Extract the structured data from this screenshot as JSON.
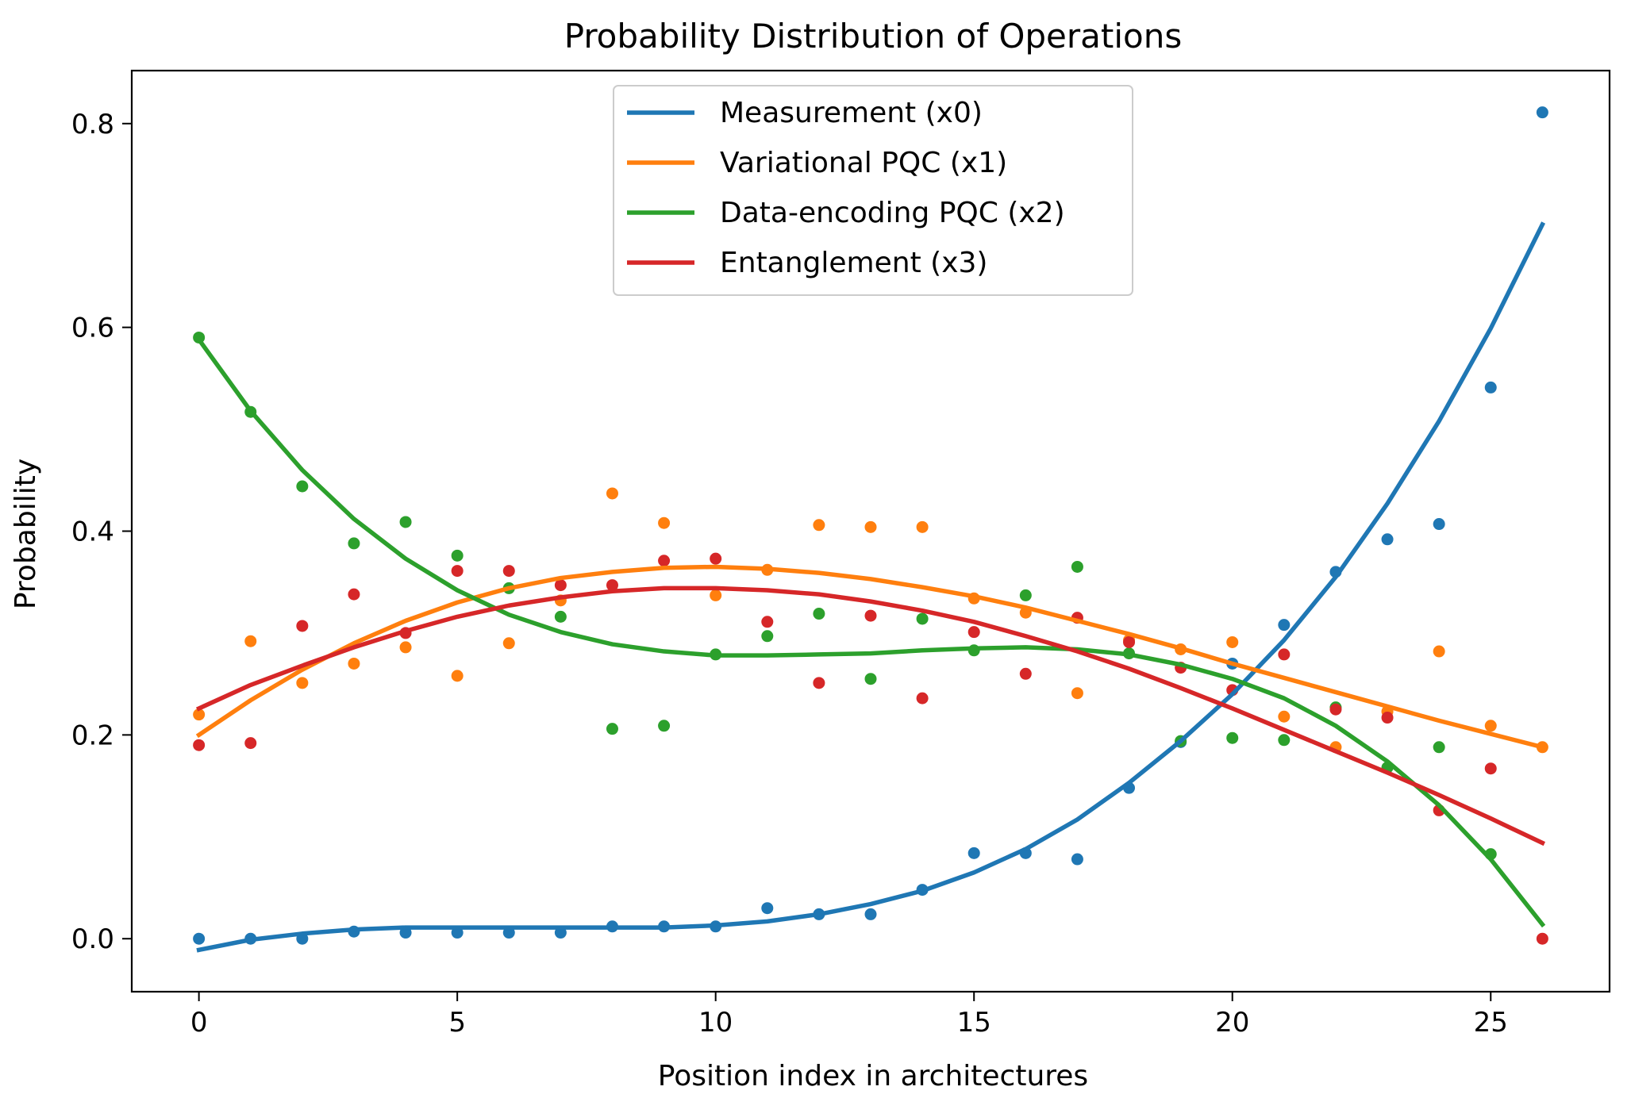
{
  "chart_data": {
    "type": "scatter",
    "title": "Probability Distribution of Operations",
    "xlabel": "Position index in architectures",
    "ylabel": "Probability",
    "xlim": [
      -1.3,
      27.3
    ],
    "ylim": [
      -0.052,
      0.852
    ],
    "xticks": [
      0,
      5,
      10,
      15,
      20,
      25
    ],
    "yticks": [
      0.0,
      0.2,
      0.4,
      0.6,
      0.8
    ],
    "xtick_labels": [
      "0",
      "5",
      "10",
      "15",
      "20",
      "25"
    ],
    "ytick_labels": [
      "0.0",
      "0.2",
      "0.4",
      "0.6",
      "0.8"
    ],
    "legend_position": "upper-center",
    "grid": false,
    "x": [
      0,
      1,
      2,
      3,
      4,
      5,
      6,
      7,
      8,
      9,
      10,
      11,
      12,
      13,
      14,
      15,
      16,
      17,
      18,
      19,
      20,
      21,
      22,
      23,
      24,
      25,
      26
    ],
    "series": [
      {
        "name": "Measurement (x0)",
        "color": "#1f77b4",
        "points": [
          0.0,
          0.0,
          0.0,
          0.007,
          0.006,
          0.006,
          0.006,
          0.006,
          0.012,
          0.012,
          0.012,
          0.03,
          0.024,
          0.024,
          0.048,
          0.084,
          0.084,
          0.078,
          0.148,
          0.193,
          0.27,
          0.308,
          0.36,
          0.392,
          0.407,
          0.541,
          0.811
        ],
        "fit": [
          -0.011,
          -0.001,
          0.005,
          0.009,
          0.011,
          0.011,
          0.011,
          0.011,
          0.011,
          0.011,
          0.013,
          0.017,
          0.024,
          0.034,
          0.047,
          0.065,
          0.088,
          0.117,
          0.153,
          0.194,
          0.24,
          0.293,
          0.355,
          0.427,
          0.508,
          0.599,
          0.701
        ]
      },
      {
        "name": "Variational PQC (x1)",
        "color": "#ff7f0e",
        "points": [
          0.22,
          0.292,
          0.251,
          0.27,
          0.286,
          0.258,
          0.29,
          0.332,
          0.437,
          0.408,
          0.337,
          0.362,
          0.406,
          0.404,
          0.404,
          0.334,
          0.32,
          0.241,
          0.293,
          0.284,
          0.291,
          0.218,
          0.188,
          0.223,
          0.282,
          0.209,
          0.188
        ],
        "fit": [
          0.2,
          0.234,
          0.264,
          0.29,
          0.312,
          0.33,
          0.344,
          0.354,
          0.36,
          0.364,
          0.365,
          0.363,
          0.359,
          0.353,
          0.345,
          0.336,
          0.325,
          0.312,
          0.299,
          0.285,
          0.27,
          0.256,
          0.242,
          0.228,
          0.214,
          0.201,
          0.188
        ]
      },
      {
        "name": "Data-encoding PQC (x2)",
        "color": "#2ca02c",
        "points": [
          0.59,
          0.517,
          0.444,
          0.388,
          0.409,
          0.376,
          0.344,
          0.316,
          0.206,
          0.209,
          0.279,
          0.297,
          0.319,
          0.255,
          0.314,
          0.283,
          0.337,
          0.365,
          0.28,
          0.194,
          0.197,
          0.195,
          0.227,
          0.168,
          0.188,
          0.083,
          null
        ],
        "fit": [
          0.588,
          0.518,
          0.46,
          0.412,
          0.373,
          0.342,
          0.318,
          0.301,
          0.289,
          0.282,
          0.278,
          0.278,
          0.279,
          0.28,
          0.283,
          0.285,
          0.286,
          0.284,
          0.279,
          0.269,
          0.255,
          0.236,
          0.209,
          0.174,
          0.131,
          0.078,
          0.014
        ]
      },
      {
        "name": "Entanglement (x3)",
        "color": "#d62728",
        "points": [
          0.19,
          0.192,
          0.307,
          0.338,
          0.3,
          0.361,
          0.361,
          0.347,
          0.347,
          0.371,
          0.373,
          0.311,
          0.251,
          0.317,
          0.236,
          0.301,
          0.26,
          0.315,
          0.291,
          0.266,
          0.244,
          0.279,
          0.225,
          0.217,
          0.126,
          0.167,
          0.0
        ],
        "fit": [
          0.226,
          0.249,
          0.268,
          0.286,
          0.302,
          0.316,
          0.327,
          0.335,
          0.341,
          0.344,
          0.344,
          0.342,
          0.338,
          0.331,
          0.322,
          0.311,
          0.297,
          0.282,
          0.265,
          0.246,
          0.226,
          0.205,
          0.184,
          0.163,
          0.141,
          0.118,
          0.094
        ]
      }
    ]
  }
}
